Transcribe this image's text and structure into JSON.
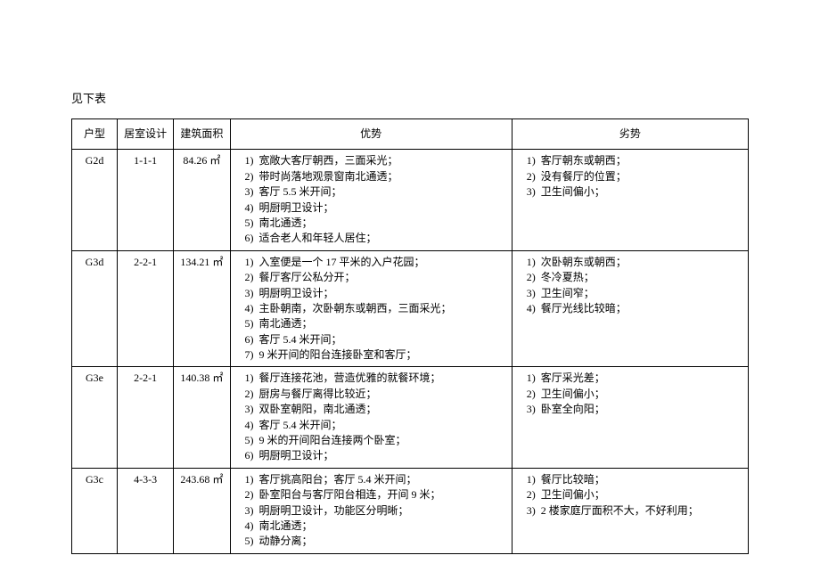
{
  "caption": "见下表",
  "table": {
    "columns": [
      "户型",
      "居室设计",
      "建筑面积",
      "优势",
      "劣势"
    ],
    "rows": [
      {
        "type": "G2d",
        "layout": "1-1-1",
        "area": "84.26 ㎡",
        "pros": [
          "宽敞大客厅朝西，三面采光；",
          "带时尚落地观景窗南北通透；",
          "客厅 5.5 米开间；",
          "明厨明卫设计；",
          "南北通透；",
          "适合老人和年轻人居住；"
        ],
        "cons": [
          "客厅朝东或朝西；",
          "没有餐厅的位置；",
          "卫生间偏小；"
        ]
      },
      {
        "type": "G3d",
        "layout": "2-2-1",
        "area": "134.21 ㎡",
        "pros": [
          "入室便是一个 17 平米的入户花园；",
          "餐厅客厅公私分开；",
          "明厨明卫设计；",
          "主卧朝南，次卧朝东或朝西，三面采光；",
          "南北通透；",
          "客厅 5.4 米开间；",
          "9 米开间的阳台连接卧室和客厅；"
        ],
        "cons": [
          "次卧朝东或朝西；",
          "冬冷夏热；",
          "卫生间窄；",
          "餐厅光线比较暗；"
        ]
      },
      {
        "type": "G3e",
        "layout": "2-2-1",
        "area": "140.38 ㎡",
        "pros": [
          "餐厅连接花池，营造优雅的就餐环境；",
          "厨房与餐厅离得比较近；",
          "双卧室朝阳，南北通透；",
          "客厅 5.4 米开间；",
          "9 米的开间阳台连接两个卧室；",
          "明厨明卫设计；"
        ],
        "cons": [
          "客厅采光差；",
          "卫生间偏小；",
          "卧室全向阳；"
        ]
      },
      {
        "type": "G3c",
        "layout": "4-3-3",
        "area": "243.68 ㎡",
        "pros": [
          "客厅挑高阳台；客厅 5.4 米开间；",
          "卧室阳台与客厅阳台相连，开间 9 米；",
          "明厨明卫设计，功能区分明晰；",
          "南北通透；",
          "动静分离；"
        ],
        "cons": [
          "餐厅比较暗；",
          "卫生间偏小；",
          "2 楼家庭厅面积不大，不好利用；"
        ]
      }
    ]
  }
}
